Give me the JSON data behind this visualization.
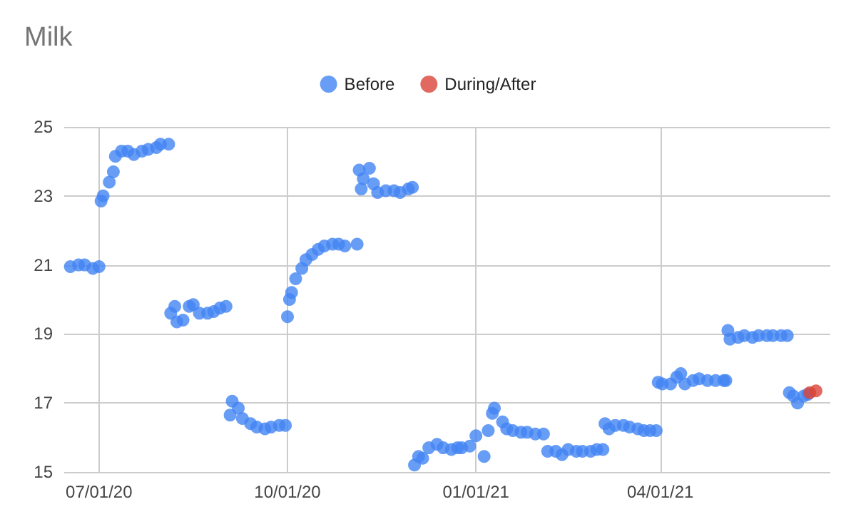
{
  "chart_data": {
    "type": "scatter",
    "title": "Milk",
    "xlim": [
      "2020-06-14",
      "2021-06-23"
    ],
    "xticks": [
      {
        "value": "2020-07-01",
        "label": "07/01/20"
      },
      {
        "value": "2020-10-01",
        "label": "10/01/20"
      },
      {
        "value": "2021-01-01",
        "label": "01/01/21"
      },
      {
        "value": "2021-04-01",
        "label": "04/01/21"
      }
    ],
    "ylim": [
      15,
      25
    ],
    "yticks": [
      15,
      17,
      19,
      21,
      23,
      25
    ],
    "grid": true,
    "legend": "top",
    "marker": "circle",
    "series": [
      {
        "name": "Before",
        "color": "#4285f4",
        "x": [
          "2020-06-17",
          "2020-06-21",
          "2020-06-24",
          "2020-06-28",
          "2020-07-01",
          "2020-07-02",
          "2020-07-03",
          "2020-07-06",
          "2020-07-08",
          "2020-07-09",
          "2020-07-12",
          "2020-07-15",
          "2020-07-18",
          "2020-07-22",
          "2020-07-25",
          "2020-07-29",
          "2020-07-31",
          "2020-08-04",
          "2020-08-05",
          "2020-08-07",
          "2020-08-08",
          "2020-08-11",
          "2020-08-14",
          "2020-08-16",
          "2020-08-19",
          "2020-08-23",
          "2020-08-26",
          "2020-08-29",
          "2020-09-01",
          "2020-09-03",
          "2020-09-04",
          "2020-09-07",
          "2020-09-09",
          "2020-09-13",
          "2020-09-16",
          "2020-09-20",
          "2020-09-23",
          "2020-09-27",
          "2020-09-30",
          "2020-10-01",
          "2020-10-02",
          "2020-10-03",
          "2020-10-05",
          "2020-10-08",
          "2020-10-10",
          "2020-10-13",
          "2020-10-16",
          "2020-10-19",
          "2020-10-23",
          "2020-10-26",
          "2020-10-29",
          "2020-11-04",
          "2020-11-05",
          "2020-11-06",
          "2020-11-07",
          "2020-11-10",
          "2020-11-12",
          "2020-11-14",
          "2020-11-18",
          "2020-11-22",
          "2020-11-25",
          "2020-11-29",
          "2020-12-01",
          "2020-12-02",
          "2020-12-04",
          "2020-12-06",
          "2020-12-09",
          "2020-12-13",
          "2020-12-16",
          "2020-12-20",
          "2020-12-23",
          "2020-12-25",
          "2020-12-29",
          "2021-01-01",
          "2021-01-05",
          "2021-01-07",
          "2021-01-09",
          "2021-01-10",
          "2021-01-14",
          "2021-01-16",
          "2021-01-19",
          "2021-01-23",
          "2021-01-26",
          "2021-01-30",
          "2021-02-03",
          "2021-02-05",
          "2021-02-09",
          "2021-02-12",
          "2021-02-15",
          "2021-02-19",
          "2021-02-22",
          "2021-02-26",
          "2021-03-01",
          "2021-03-04",
          "2021-03-05",
          "2021-03-07",
          "2021-03-10",
          "2021-03-14",
          "2021-03-17",
          "2021-03-21",
          "2021-03-24",
          "2021-03-27",
          "2021-03-30",
          "2021-03-31",
          "2021-04-02",
          "2021-04-06",
          "2021-04-09",
          "2021-04-11",
          "2021-04-13",
          "2021-04-17",
          "2021-04-20",
          "2021-04-24",
          "2021-04-28",
          "2021-05-02",
          "2021-05-03",
          "2021-05-04",
          "2021-05-05",
          "2021-05-09",
          "2021-05-12",
          "2021-05-16",
          "2021-05-19",
          "2021-05-23",
          "2021-05-26",
          "2021-05-30",
          "2021-06-02",
          "2021-06-03",
          "2021-06-05",
          "2021-06-07",
          "2021-06-10",
          "2021-06-12"
        ],
        "values": [
          20.95,
          21.0,
          21.0,
          20.9,
          20.95,
          22.85,
          23.0,
          23.4,
          23.7,
          24.15,
          24.3,
          24.3,
          24.2,
          24.3,
          24.35,
          24.4,
          24.5,
          24.5,
          19.6,
          19.8,
          19.35,
          19.4,
          19.8,
          19.85,
          19.6,
          19.6,
          19.65,
          19.75,
          19.8,
          16.65,
          17.05,
          16.85,
          16.55,
          16.4,
          16.3,
          16.25,
          16.3,
          16.35,
          16.35,
          19.5,
          20.0,
          20.2,
          20.6,
          20.9,
          21.15,
          21.3,
          21.45,
          21.55,
          21.6,
          21.6,
          21.55,
          21.6,
          23.75,
          23.2,
          23.5,
          23.8,
          23.35,
          23.1,
          23.15,
          23.15,
          23.1,
          23.2,
          23.25,
          15.2,
          15.45,
          15.4,
          15.7,
          15.8,
          15.7,
          15.65,
          15.7,
          15.7,
          15.75,
          16.05,
          15.45,
          16.2,
          16.7,
          16.85,
          16.45,
          16.25,
          16.2,
          16.15,
          16.15,
          16.1,
          16.1,
          15.6,
          15.6,
          15.5,
          15.65,
          15.6,
          15.6,
          15.6,
          15.65,
          15.65,
          16.4,
          16.25,
          16.35,
          16.35,
          16.3,
          16.25,
          16.2,
          16.2,
          16.2,
          17.6,
          17.55,
          17.55,
          17.75,
          17.85,
          17.55,
          17.65,
          17.7,
          17.65,
          17.65,
          17.65,
          17.65,
          19.1,
          18.85,
          18.9,
          18.95,
          18.9,
          18.95,
          18.95,
          18.95,
          18.95,
          18.95,
          17.3,
          17.2,
          17.0,
          17.2,
          17.25
        ]
      },
      {
        "name": "During/After",
        "color": "#db4437",
        "x": [
          "2021-06-13",
          "2021-06-16"
        ],
        "values": [
          17.3,
          17.35
        ]
      }
    ]
  }
}
